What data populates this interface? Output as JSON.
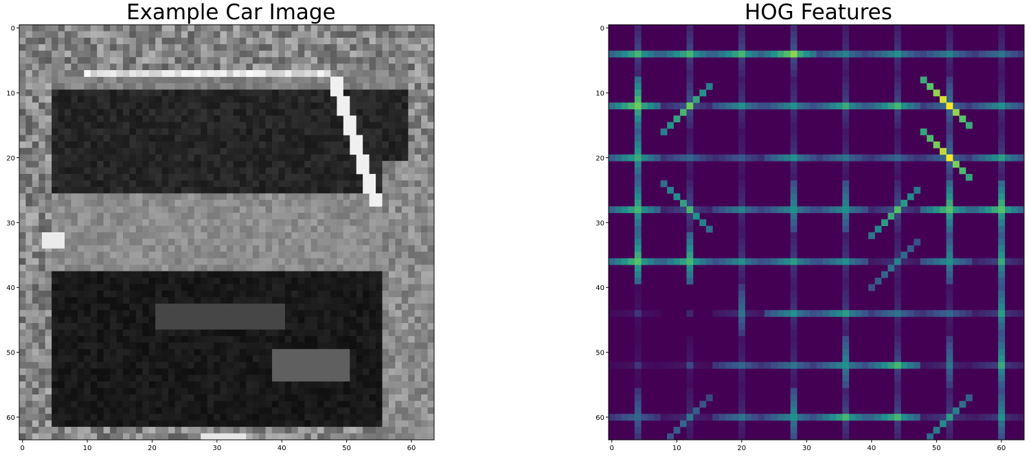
{
  "chart_data": [
    {
      "type": "heatmap",
      "title": "Example Car Image",
      "colormap": "gray",
      "xlabel": "",
      "ylabel": "",
      "image_shape": [
        64,
        64
      ],
      "xlim": [
        -0.5,
        63.5
      ],
      "ylim": [
        63.5,
        -0.5
      ],
      "x_ticks": [
        0,
        10,
        20,
        30,
        40,
        50,
        60
      ],
      "y_ticks": [
        0,
        10,
        20,
        30,
        40,
        50,
        60
      ],
      "tick_labels": [
        "0",
        "10",
        "20",
        "30",
        "40",
        "50",
        "60"
      ],
      "grid": false
    },
    {
      "type": "heatmap",
      "title": "HOG Features",
      "colormap": "viridis",
      "xlabel": "",
      "ylabel": "",
      "image_shape": [
        64,
        64
      ],
      "cells_per_axis": 8,
      "xlim": [
        -0.5,
        63.5
      ],
      "ylim": [
        63.5,
        -0.5
      ],
      "x_ticks": [
        0,
        10,
        20,
        30,
        40,
        50,
        60
      ],
      "y_ticks": [
        0,
        10,
        20,
        30,
        40,
        50,
        60
      ],
      "tick_labels": [
        "0",
        "10",
        "20",
        "30",
        "40",
        "50",
        "60"
      ],
      "grid": false,
      "dominant_orientation_per_cell": [
        [
          "h",
          "h",
          "h",
          "h",
          "h",
          "h",
          "h",
          "h"
        ],
        [
          "x",
          "d",
          "h",
          "h",
          "h",
          "h",
          "b",
          "h"
        ],
        [
          "x",
          "h",
          "h",
          "h",
          "h",
          "h",
          "b",
          "h"
        ],
        [
          "x",
          "b",
          "h",
          "x",
          "x",
          "d",
          "x",
          "x"
        ],
        [
          "x",
          "x",
          "h",
          "h",
          "h",
          "d",
          "x",
          "v"
        ],
        [
          "n",
          "n",
          "v",
          "h",
          "h",
          "h",
          "h",
          "v"
        ],
        [
          "n",
          "n",
          "h",
          "h",
          "x",
          "h",
          "v",
          "v"
        ],
        [
          "x",
          "d",
          "h",
          "x",
          "h",
          "h",
          "d",
          "v"
        ]
      ],
      "cell_strength": [
        [
          0.6,
          0.6,
          0.6,
          0.75,
          0.4,
          0.45,
          0.4,
          0.35
        ],
        [
          0.7,
          0.7,
          0.45,
          0.45,
          0.55,
          0.6,
          1.0,
          0.45
        ],
        [
          0.55,
          0.3,
          0.25,
          0.45,
          0.35,
          0.3,
          0.95,
          0.5
        ],
        [
          0.6,
          0.6,
          0.4,
          0.45,
          0.45,
          0.65,
          0.65,
          0.65
        ],
        [
          0.65,
          0.6,
          0.45,
          0.5,
          0.45,
          0.4,
          0.45,
          0.55
        ],
        [
          0.15,
          0.1,
          0.35,
          0.45,
          0.5,
          0.35,
          0.3,
          0.5
        ],
        [
          0.15,
          0.2,
          0.3,
          0.35,
          0.45,
          0.6,
          0.35,
          0.55
        ],
        [
          0.3,
          0.35,
          0.35,
          0.45,
          0.6,
          0.6,
          0.5,
          0.45
        ]
      ]
    }
  ],
  "colors": {
    "viridis_min": "#440154",
    "viridis_mid": "#21918c",
    "viridis_max": "#fde725"
  }
}
